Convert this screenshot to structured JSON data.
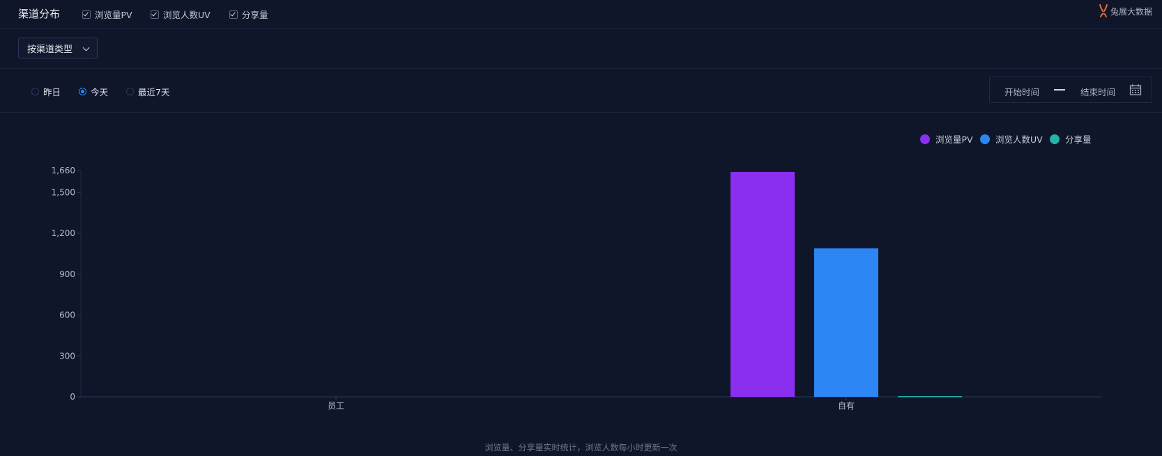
{
  "header": {
    "title": "渠道分布",
    "checkboxes": [
      {
        "label": "浏览量PV",
        "checked": true
      },
      {
        "label": "浏览人数UV",
        "checked": true
      },
      {
        "label": "分享量",
        "checked": true
      }
    ],
    "brand": "兔展大数据"
  },
  "filter": {
    "dropdown_label": "按渠道类型"
  },
  "period": {
    "options": [
      "昨日",
      "今天",
      "最近7天"
    ],
    "selected": "今天",
    "start_placeholder": "开始时间",
    "end_placeholder": "结束时间"
  },
  "legend": [
    {
      "name": "浏览量PV",
      "color": "#8a2ff0"
    },
    {
      "name": "浏览人数UV",
      "color": "#2e86f5"
    },
    {
      "name": "分享量",
      "color": "#26b3a6"
    }
  ],
  "chart_data": {
    "type": "bar",
    "categories": [
      "员工",
      "自有"
    ],
    "series": [
      {
        "name": "浏览量PV",
        "values": [
          0,
          1650
        ],
        "color": "#8a2ff0"
      },
      {
        "name": "浏览人数UV",
        "values": [
          0,
          1090
        ],
        "color": "#2e86f5"
      },
      {
        "name": "分享量",
        "values": [
          0,
          5
        ],
        "color": "#26b3a6"
      }
    ],
    "yticks": [
      0,
      300,
      600,
      900,
      1200,
      1500,
      1660
    ],
    "ytick_labels": [
      "0",
      "300",
      "600",
      "900",
      "1,200",
      "1,500",
      "1,660"
    ],
    "ylim": [
      0,
      1660
    ],
    "grid": false,
    "legend_position": "top-right"
  },
  "footnote": "浏览量、分享量实时统计，浏览人数每小时更新一次"
}
